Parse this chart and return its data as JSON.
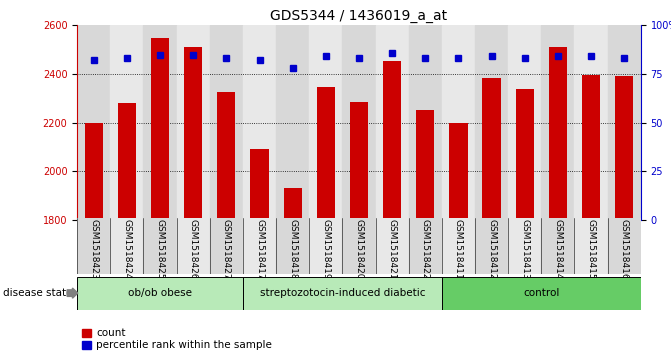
{
  "title": "GDS5344 / 1436019_a_at",
  "samples": [
    "GSM1518423",
    "GSM1518424",
    "GSM1518425",
    "GSM1518426",
    "GSM1518427",
    "GSM1518417",
    "GSM1518418",
    "GSM1518419",
    "GSM1518420",
    "GSM1518421",
    "GSM1518422",
    "GSM1518411",
    "GSM1518412",
    "GSM1518413",
    "GSM1518414",
    "GSM1518415",
    "GSM1518416"
  ],
  "counts": [
    2200,
    2280,
    2550,
    2510,
    2325,
    2090,
    1930,
    2345,
    2285,
    2455,
    2250,
    2200,
    2385,
    2340,
    2510,
    2395,
    2390
  ],
  "percentiles": [
    82,
    83,
    85,
    85,
    83,
    82,
    78,
    84,
    83,
    86,
    83,
    83,
    84,
    83,
    84,
    84,
    83
  ],
  "groups": [
    {
      "label": "ob/ob obese",
      "start": 0,
      "end": 5,
      "color": "#b8eab8"
    },
    {
      "label": "streptozotocin-induced diabetic",
      "start": 5,
      "end": 11,
      "color": "#b8eab8"
    },
    {
      "label": "control",
      "start": 11,
      "end": 17,
      "color": "#66cc66"
    }
  ],
  "bar_color": "#cc0000",
  "dot_color": "#0000cc",
  "ylim_left": [
    1800,
    2600
  ],
  "ylim_right": [
    0,
    100
  ],
  "yticks_left": [
    1800,
    2000,
    2200,
    2400,
    2600
  ],
  "yticks_right": [
    0,
    25,
    50,
    75,
    100
  ],
  "ytick_labels_right": [
    "0",
    "25",
    "50",
    "75",
    "100%"
  ],
  "grid_values": [
    2000,
    2200,
    2400
  ],
  "bar_width": 0.55,
  "title_fontsize": 10,
  "tick_fontsize": 7,
  "label_fontsize": 7.5,
  "col_bg_even": "#d8d8d8",
  "col_bg_odd": "#e8e8e8"
}
